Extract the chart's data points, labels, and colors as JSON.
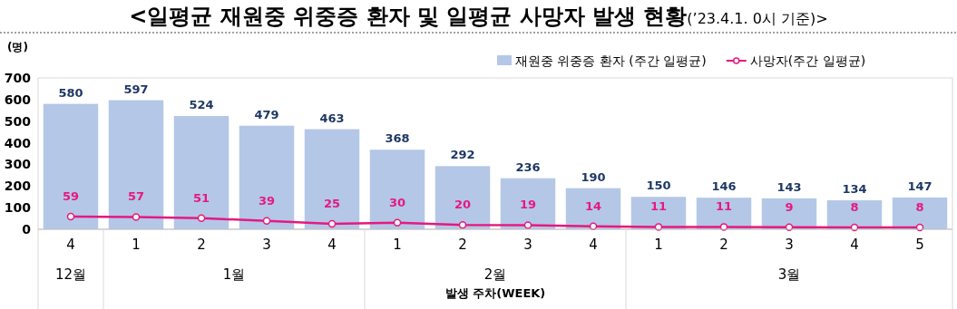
{
  "chart_data": {
    "type": "bar",
    "title": "**<일평균 재원중 위중증 환자 및 일평균 사망자 발생 현황**(’23.4.1. 0시 기준)>",
    "ylabel": "(명)",
    "xlabel": "발생 주차(WEEK)",
    "categories": [
      "4",
      "1",
      "2",
      "3",
      "4",
      "1",
      "2",
      "3",
      "4",
      "1",
      "2",
      "3",
      "4",
      "5"
    ],
    "annotations": [
      "12월",
      "1월",
      "2월",
      "3월"
    ],
    "series": [
      {
        "name": "재원중 위중증 환자 (주간 일평균)",
        "color": "#b4c7e7",
        "values": [
          580,
          597,
          524,
          479,
          463,
          368,
          292,
          236,
          190,
          150,
          146,
          143,
          134,
          147
        ]
      },
      {
        "name": "사망자(주간 일평균)",
        "type": "line",
        "color": "#e6197f",
        "marker": "circle",
        "values": [
          59,
          57,
          51,
          39,
          25,
          30,
          20,
          19,
          14,
          11,
          11,
          9,
          8,
          8
        ]
      }
    ],
    "ylim": [
      0,
      700
    ],
    "yticks": [
      0,
      100,
      200,
      300,
      400,
      500,
      600,
      700
    ],
    "data_labels": true,
    "legend": "top right",
    "grid": false
  }
}
